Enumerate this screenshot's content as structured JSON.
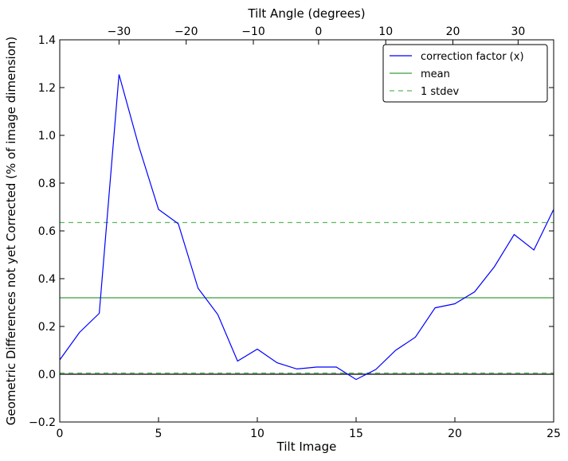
{
  "chart_data": {
    "type": "line",
    "xlabel": "Tilt Image",
    "ylabel": "Geometric Differences not yet Corrected (% of image dimension)",
    "top_xlabel": "Tilt Angle (degrees)",
    "xlim": [
      0,
      25
    ],
    "ylim": [
      -0.2,
      1.4
    ],
    "x_ticks": [
      "0",
      "5",
      "10",
      "15",
      "20",
      "25"
    ],
    "y_ticks": [
      "−0.2",
      "0.0",
      "0.2",
      "0.4",
      "0.6",
      "0.8",
      "1.0",
      "1.2",
      "1.4"
    ],
    "top_ticks": [
      {
        "label": "−30",
        "x": 3
      },
      {
        "label": "−20",
        "x": 6.4
      },
      {
        "label": "−10",
        "x": 9.8
      },
      {
        "label": "0",
        "x": 13.1
      },
      {
        "label": "10",
        "x": 16.5
      },
      {
        "label": "20",
        "x": 19.9
      },
      {
        "label": "30",
        "x": 23.2
      }
    ],
    "series": [
      {
        "name": "correction factor (x)",
        "color": "#0000ff",
        "style": "solid",
        "x": [
          0,
          1,
          2,
          3,
          4,
          5,
          6,
          7,
          8,
          9,
          10,
          11,
          12,
          13,
          14,
          15,
          16,
          17,
          18,
          19,
          20,
          21,
          22,
          23,
          24,
          25
        ],
        "y": [
          0.06,
          0.175,
          0.255,
          1.255,
          0.955,
          0.69,
          0.63,
          0.36,
          0.25,
          0.055,
          0.105,
          0.048,
          0.022,
          0.03,
          0.03,
          -0.022,
          0.02,
          0.1,
          0.155,
          0.278,
          0.295,
          0.345,
          0.45,
          0.585,
          0.52,
          0.69
        ]
      },
      {
        "name": "mean",
        "color": "#3a9e3a",
        "style": "solid",
        "y_const": 0.32
      },
      {
        "name": "1 stdev",
        "color": "#5cb85c",
        "style": "dashed",
        "y_const": [
          0.635,
          0.005
        ]
      }
    ],
    "zero_line": 0.0,
    "legend_placement": "top-right",
    "grid": false
  }
}
